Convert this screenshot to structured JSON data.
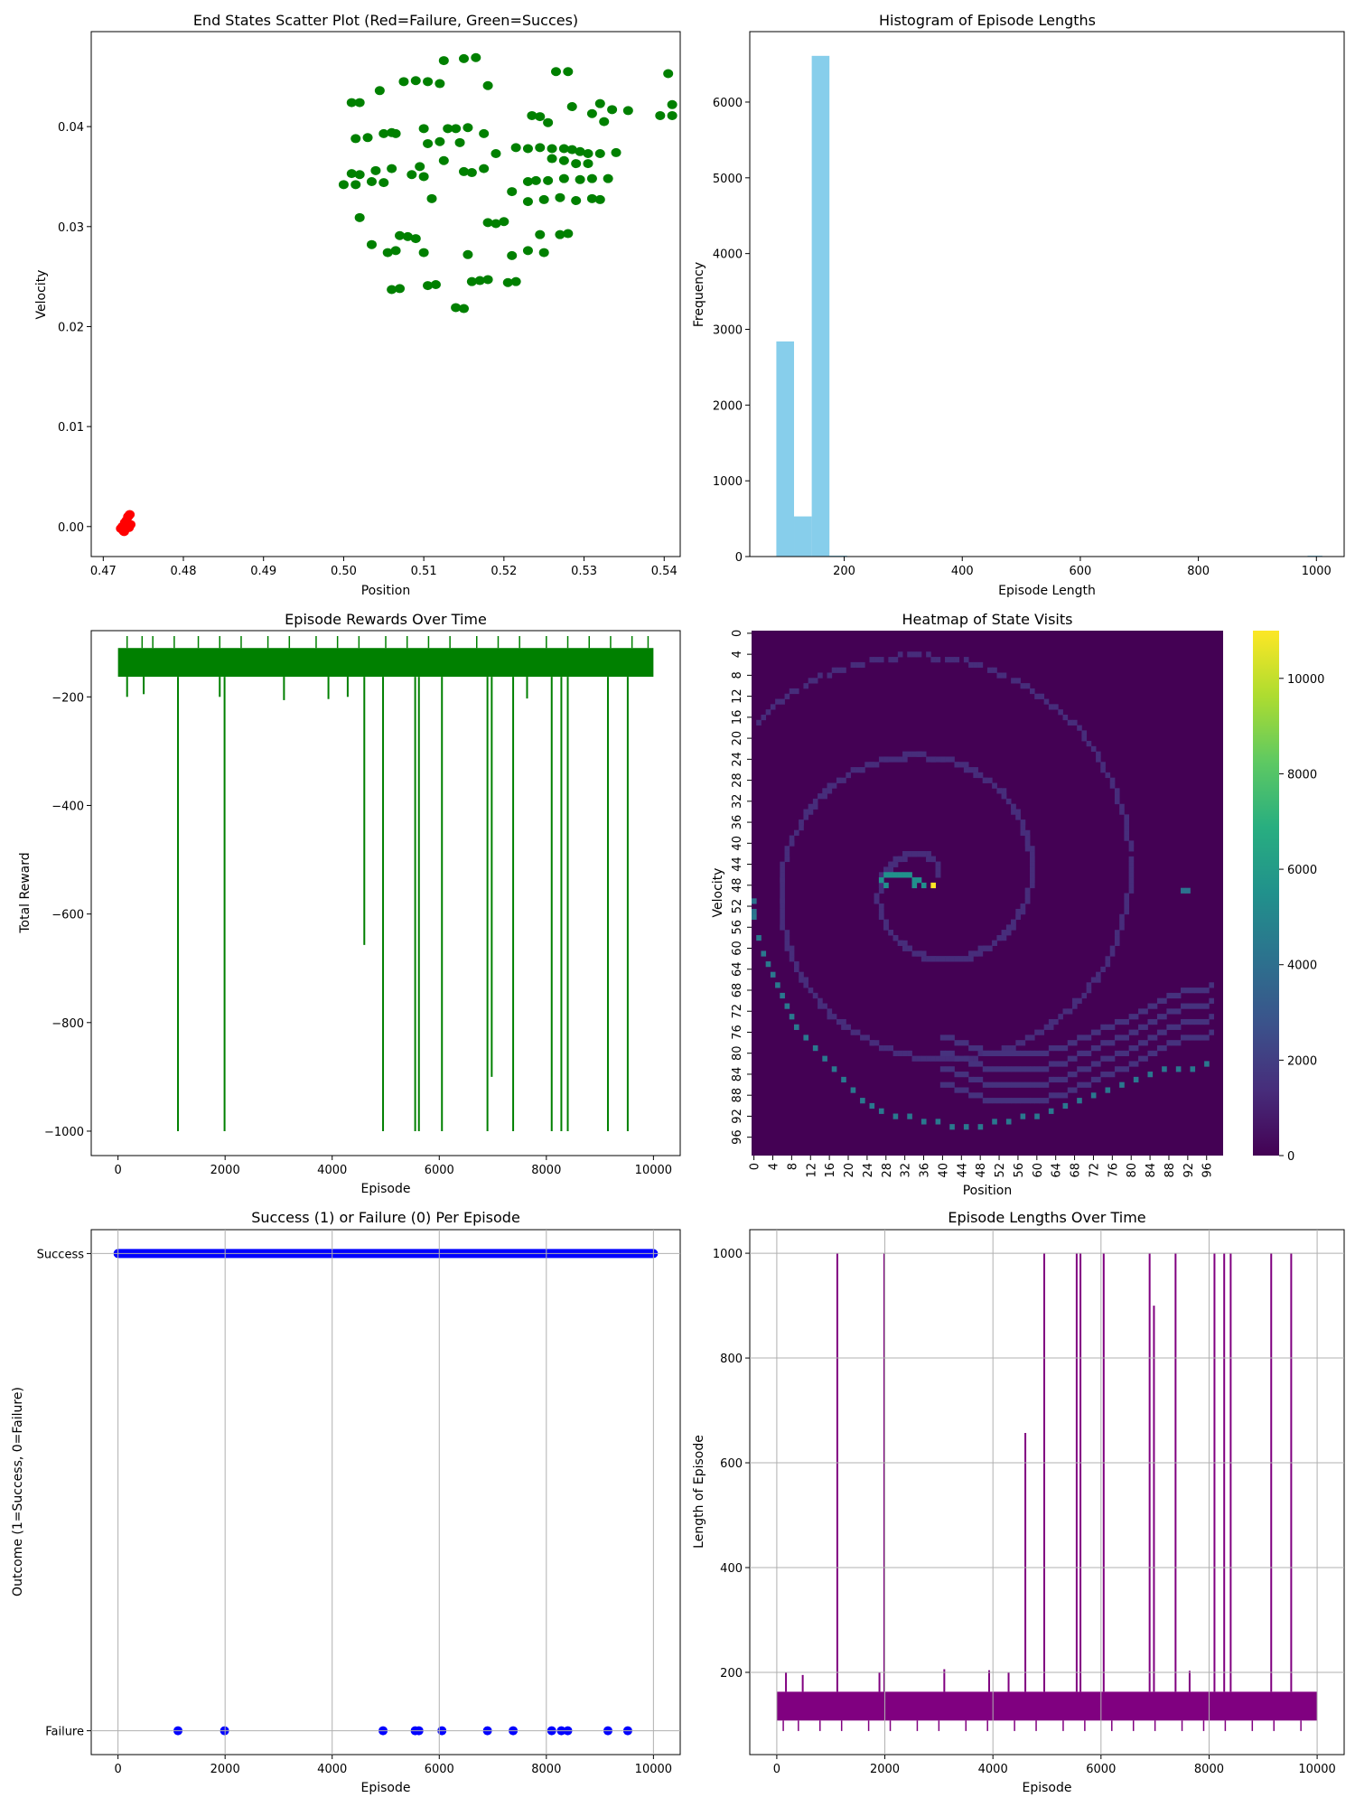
{
  "chart_data": [
    {
      "id": "scatter",
      "type": "scatter",
      "title": "End States Scatter Plot (Red=Failure, Green=Succes)",
      "xlabel": "Position",
      "ylabel": "Velocity",
      "xlim": [
        0.4685,
        0.542
      ],
      "ylim": [
        -0.003,
        0.0495
      ],
      "xticks": [
        0.47,
        0.48,
        0.49,
        0.5,
        0.51,
        0.52,
        0.53,
        0.54
      ],
      "xtick_labels": [
        "0.47",
        "0.48",
        "0.49",
        "0.50",
        "0.51",
        "0.52",
        "0.53",
        "0.54"
      ],
      "yticks": [
        0.0,
        0.01,
        0.02,
        0.03,
        0.04
      ],
      "ytick_labels": [
        "0.00",
        "0.01",
        "0.02",
        "0.03",
        "0.04"
      ],
      "colors": {
        "failure": "#ff0000",
        "success": "#008000"
      },
      "series": [
        {
          "name": "Failure",
          "color": "#ff0000",
          "points": [
            [
              0.4722,
              -0.0002
            ],
            [
              0.4725,
              -0.0004
            ],
            [
              0.4728,
              0.0001
            ],
            [
              0.4726,
              -0.0005
            ],
            [
              0.473,
              0.0003
            ],
            [
              0.4731,
              0.001
            ],
            [
              0.4733,
              0.0012
            ],
            [
              0.4729,
              0.0006
            ],
            [
              0.4724,
              0.0
            ],
            [
              0.4732,
              -0.0001
            ],
            [
              0.4727,
              0.0004
            ],
            [
              0.4734,
              0.0002
            ]
          ]
        },
        {
          "name": "Success",
          "color": "#008000",
          "points": [
            [
              0.515,
              0.0468
            ],
            [
              0.5165,
              0.0469
            ],
            [
              0.5125,
              0.0466
            ],
            [
              0.528,
              0.0455
            ],
            [
              0.5265,
              0.0455
            ],
            [
              0.5405,
              0.0453
            ],
            [
              0.541,
              0.0422
            ],
            [
              0.509,
              0.0446
            ],
            [
              0.5105,
              0.0445
            ],
            [
              0.5075,
              0.0445
            ],
            [
              0.512,
              0.0443
            ],
            [
              0.518,
              0.0441
            ],
            [
              0.5045,
              0.0436
            ],
            [
              0.501,
              0.0424
            ],
            [
              0.502,
              0.0424
            ],
            [
              0.5285,
              0.042
            ],
            [
              0.5245,
              0.041
            ],
            [
              0.5235,
              0.0411
            ],
            [
              0.532,
              0.0423
            ],
            [
              0.5335,
              0.0417
            ],
            [
              0.5355,
              0.0416
            ],
            [
              0.5395,
              0.0411
            ],
            [
              0.541,
              0.0411
            ],
            [
              0.531,
              0.0413
            ],
            [
              0.5325,
              0.0405
            ],
            [
              0.5255,
              0.0404
            ],
            [
              0.514,
              0.0398
            ],
            [
              0.513,
              0.0398
            ],
            [
              0.5155,
              0.0399
            ],
            [
              0.51,
              0.0398
            ],
            [
              0.506,
              0.0394
            ],
            [
              0.505,
              0.0393
            ],
            [
              0.503,
              0.0389
            ],
            [
              0.5015,
              0.0388
            ],
            [
              0.5065,
              0.0393
            ],
            [
              0.5175,
              0.0393
            ],
            [
              0.512,
              0.0385
            ],
            [
              0.5105,
              0.0383
            ],
            [
              0.5145,
              0.0384
            ],
            [
              0.519,
              0.0373
            ],
            [
              0.5215,
              0.0379
            ],
            [
              0.523,
              0.0378
            ],
            [
              0.5245,
              0.0379
            ],
            [
              0.526,
              0.0378
            ],
            [
              0.5275,
              0.0378
            ],
            [
              0.5285,
              0.0377
            ],
            [
              0.5295,
              0.0375
            ],
            [
              0.5305,
              0.0373
            ],
            [
              0.532,
              0.0373
            ],
            [
              0.534,
              0.0374
            ],
            [
              0.5125,
              0.0366
            ],
            [
              0.5095,
              0.036
            ],
            [
              0.506,
              0.0358
            ],
            [
              0.504,
              0.0356
            ],
            [
              0.502,
              0.0352
            ],
            [
              0.501,
              0.0353
            ],
            [
              0.5085,
              0.0352
            ],
            [
              0.51,
              0.035
            ],
            [
              0.515,
              0.0355
            ],
            [
              0.516,
              0.0354
            ],
            [
              0.5175,
              0.0358
            ],
            [
              0.526,
              0.0368
            ],
            [
              0.5275,
              0.0366
            ],
            [
              0.529,
              0.0363
            ],
            [
              0.5305,
              0.0363
            ],
            [
              0.524,
              0.0346
            ],
            [
              0.523,
              0.0345
            ],
            [
              0.5255,
              0.0346
            ],
            [
              0.5275,
              0.0348
            ],
            [
              0.5295,
              0.0347
            ],
            [
              0.531,
              0.0348
            ],
            [
              0.533,
              0.0348
            ],
            [
              0.5,
              0.0342
            ],
            [
              0.5015,
              0.0342
            ],
            [
              0.5035,
              0.0345
            ],
            [
              0.505,
              0.0344
            ],
            [
              0.521,
              0.0335
            ],
            [
              0.523,
              0.0325
            ],
            [
              0.525,
              0.0327
            ],
            [
              0.527,
              0.0329
            ],
            [
              0.529,
              0.0326
            ],
            [
              0.531,
              0.0328
            ],
            [
              0.532,
              0.0327
            ],
            [
              0.511,
              0.0328
            ],
            [
              0.518,
              0.0304
            ],
            [
              0.519,
              0.0303
            ],
            [
              0.52,
              0.0305
            ],
            [
              0.527,
              0.0292
            ],
            [
              0.528,
              0.0293
            ],
            [
              0.5245,
              0.0292
            ],
            [
              0.5155,
              0.0272
            ],
            [
              0.507,
              0.0291
            ],
            [
              0.508,
              0.029
            ],
            [
              0.509,
              0.0288
            ],
            [
              0.502,
              0.0309
            ],
            [
              0.5035,
              0.0282
            ],
            [
              0.5055,
              0.0274
            ],
            [
              0.5065,
              0.0276
            ],
            [
              0.51,
              0.0274
            ],
            [
              0.521,
              0.0271
            ],
            [
              0.523,
              0.0276
            ],
            [
              0.525,
              0.0274
            ],
            [
              0.506,
              0.0237
            ],
            [
              0.507,
              0.0238
            ],
            [
              0.5105,
              0.0241
            ],
            [
              0.5115,
              0.0242
            ],
            [
              0.516,
              0.0245
            ],
            [
              0.517,
              0.0246
            ],
            [
              0.518,
              0.0247
            ],
            [
              0.5205,
              0.0244
            ],
            [
              0.5215,
              0.0245
            ],
            [
              0.514,
              0.0219
            ],
            [
              0.515,
              0.0218
            ]
          ]
        }
      ]
    },
    {
      "id": "histogram",
      "type": "bar",
      "title": "Histogram of Episode Lengths",
      "xlabel": "Episode Length",
      "ylabel": "Frequency",
      "xlim": [
        40,
        1047
      ],
      "ylim": [
        0,
        6930
      ],
      "xticks": [
        200,
        400,
        600,
        800,
        1000
      ],
      "xtick_labels": [
        "200",
        "400",
        "600",
        "800",
        "1000"
      ],
      "yticks": [
        0,
        1000,
        2000,
        3000,
        4000,
        5000,
        6000
      ],
      "ytick_labels": [
        "0",
        "1000",
        "2000",
        "3000",
        "4000",
        "5000",
        "6000"
      ],
      "colors": {
        "bar": "#87ceeb"
      },
      "bins": [
        {
          "start": 85,
          "end": 115,
          "value": 2840
        },
        {
          "start": 115,
          "end": 145,
          "value": 530
        },
        {
          "start": 145,
          "end": 175,
          "value": 6610
        },
        {
          "start": 175,
          "end": 205,
          "value": 12
        },
        {
          "start": 985,
          "end": 1010,
          "value": 12
        }
      ]
    },
    {
      "id": "rewards",
      "type": "line",
      "title": "Episode Rewards Over Time",
      "xlabel": "Episode",
      "ylabel": "Total Reward",
      "xlim": [
        -500,
        10500
      ],
      "ylim": [
        -1045,
        -78
      ],
      "xticks": [
        0,
        2000,
        4000,
        6000,
        8000,
        10000
      ],
      "xtick_labels": [
        "0",
        "2000",
        "4000",
        "6000",
        "8000",
        "10000"
      ],
      "yticks": [
        -200,
        -400,
        -600,
        -800,
        -1000
      ],
      "ytick_labels": [
        "−200",
        "−400",
        "−600",
        "−800",
        "−1000"
      ],
      "colors": {
        "line": "#008000"
      },
      "band": {
        "start": 0,
        "end": 10000,
        "low": -163,
        "high": -110
      },
      "up_spikes": {
        "episodes": [
          170,
          450,
          650,
          1050,
          1500,
          1900,
          2300,
          2800,
          3200,
          3700,
          4100,
          4500,
          5000,
          5400,
          5800,
          6200,
          6700,
          7100,
          7500,
          8000,
          8400,
          8800,
          9200,
          9600,
          9900
        ],
        "value": -88
      },
      "down_spikes": [
        {
          "episode": 170,
          "value": -200
        },
        {
          "episode": 480,
          "value": -195
        },
        {
          "episode": 1120,
          "value": -1000
        },
        {
          "episode": 1900,
          "value": -200
        },
        {
          "episode": 1990,
          "value": -1000
        },
        {
          "episode": 3100,
          "value": -206
        },
        {
          "episode": 3930,
          "value": -204
        },
        {
          "episode": 4290,
          "value": -200
        },
        {
          "episode": 4600,
          "value": -657
        },
        {
          "episode": 4950,
          "value": -1000
        },
        {
          "episode": 5550,
          "value": -1000
        },
        {
          "episode": 5620,
          "value": -1000
        },
        {
          "episode": 6050,
          "value": -1000
        },
        {
          "episode": 6900,
          "value": -1000
        },
        {
          "episode": 6980,
          "value": -900
        },
        {
          "episode": 7380,
          "value": -1000
        },
        {
          "episode": 7640,
          "value": -203
        },
        {
          "episode": 8100,
          "value": -1000
        },
        {
          "episode": 8280,
          "value": -1000
        },
        {
          "episode": 8400,
          "value": -1000
        },
        {
          "episode": 9150,
          "value": -1000
        },
        {
          "episode": 9520,
          "value": -1000
        }
      ]
    },
    {
      "id": "heatmap",
      "type": "heatmap",
      "title": "Heatmap of State Visits",
      "xlabel": "Position",
      "ylabel": "Velocity",
      "grid_size": 100,
      "tick_labels": [
        "0",
        "4",
        "8",
        "12",
        "16",
        "20",
        "24",
        "28",
        "32",
        "36",
        "40",
        "44",
        "48",
        "52",
        "56",
        "60",
        "64",
        "68",
        "72",
        "76",
        "80",
        "84",
        "88",
        "92",
        "96"
      ],
      "colorbar": {
        "min": 0,
        "max": 11000,
        "ticks": [
          0,
          2000,
          4000,
          6000,
          8000,
          10000
        ],
        "tick_labels": [
          "0",
          "2000",
          "4000",
          "6000",
          "8000",
          "10000"
        ]
      },
      "colormap": "viridis",
      "hotspot": {
        "position": 38,
        "velocity": 48,
        "value": 11000
      }
    },
    {
      "id": "success",
      "type": "scatter",
      "title": "Success (1) or Failure (0) Per Episode",
      "xlabel": "Episode",
      "ylabel": "Outcome (1=Success, 0=Failure)",
      "xlim": [
        -500,
        10500
      ],
      "ylim": [
        -0.05,
        1.05
      ],
      "xticks": [
        0,
        2000,
        4000,
        6000,
        8000,
        10000
      ],
      "xtick_labels": [
        "0",
        "2000",
        "4000",
        "6000",
        "8000",
        "10000"
      ],
      "yticks": [
        0,
        1
      ],
      "ytick_labels": [
        "Failure",
        "Success"
      ],
      "grid": true,
      "colors": {
        "marker": "#0000ff"
      },
      "success_range": [
        0,
        10000
      ],
      "failure_episodes": [
        1120,
        1990,
        4950,
        5550,
        5620,
        6050,
        6900,
        7380,
        8100,
        8280,
        8400,
        9150,
        9520
      ]
    },
    {
      "id": "lengths",
      "type": "line",
      "title": "Episode Lengths Over Time",
      "xlabel": "Episode",
      "ylabel": "Length of Episode",
      "xlim": [
        -500,
        10500
      ],
      "ylim": [
        43,
        1045
      ],
      "xticks": [
        0,
        2000,
        4000,
        6000,
        8000,
        10000
      ],
      "xtick_labels": [
        "0",
        "2000",
        "4000",
        "6000",
        "8000",
        "10000"
      ],
      "yticks": [
        200,
        400,
        600,
        800,
        1000
      ],
      "ytick_labels": [
        "200",
        "400",
        "600",
        "800",
        "1000"
      ],
      "grid": true,
      "colors": {
        "line": "#800080"
      },
      "band": {
        "start": 0,
        "end": 10000,
        "low": 108,
        "high": 163
      },
      "down_spikes": {
        "episodes": [
          120,
          400,
          800,
          1200,
          1700,
          2100,
          2600,
          3000,
          3500,
          3900,
          4400,
          4800,
          5300,
          5700,
          6200,
          6600,
          7000,
          7500,
          7900,
          8300,
          8800,
          9200,
          9700
        ],
        "value": 88
      },
      "up_spikes": [
        {
          "episode": 170,
          "value": 200
        },
        {
          "episode": 480,
          "value": 195
        },
        {
          "episode": 1120,
          "value": 1000
        },
        {
          "episode": 1900,
          "value": 200
        },
        {
          "episode": 1990,
          "value": 1000
        },
        {
          "episode": 3100,
          "value": 206
        },
        {
          "episode": 3930,
          "value": 204
        },
        {
          "episode": 4290,
          "value": 200
        },
        {
          "episode": 4600,
          "value": 657
        },
        {
          "episode": 4950,
          "value": 1000
        },
        {
          "episode": 5550,
          "value": 1000
        },
        {
          "episode": 5620,
          "value": 1000
        },
        {
          "episode": 6050,
          "value": 1000
        },
        {
          "episode": 6900,
          "value": 1000
        },
        {
          "episode": 6980,
          "value": 900
        },
        {
          "episode": 7380,
          "value": 1000
        },
        {
          "episode": 7640,
          "value": 203
        },
        {
          "episode": 8100,
          "value": 1000
        },
        {
          "episode": 8280,
          "value": 1000
        },
        {
          "episode": 8400,
          "value": 1000
        },
        {
          "episode": 9150,
          "value": 1000
        },
        {
          "episode": 9520,
          "value": 1000
        }
      ]
    }
  ]
}
